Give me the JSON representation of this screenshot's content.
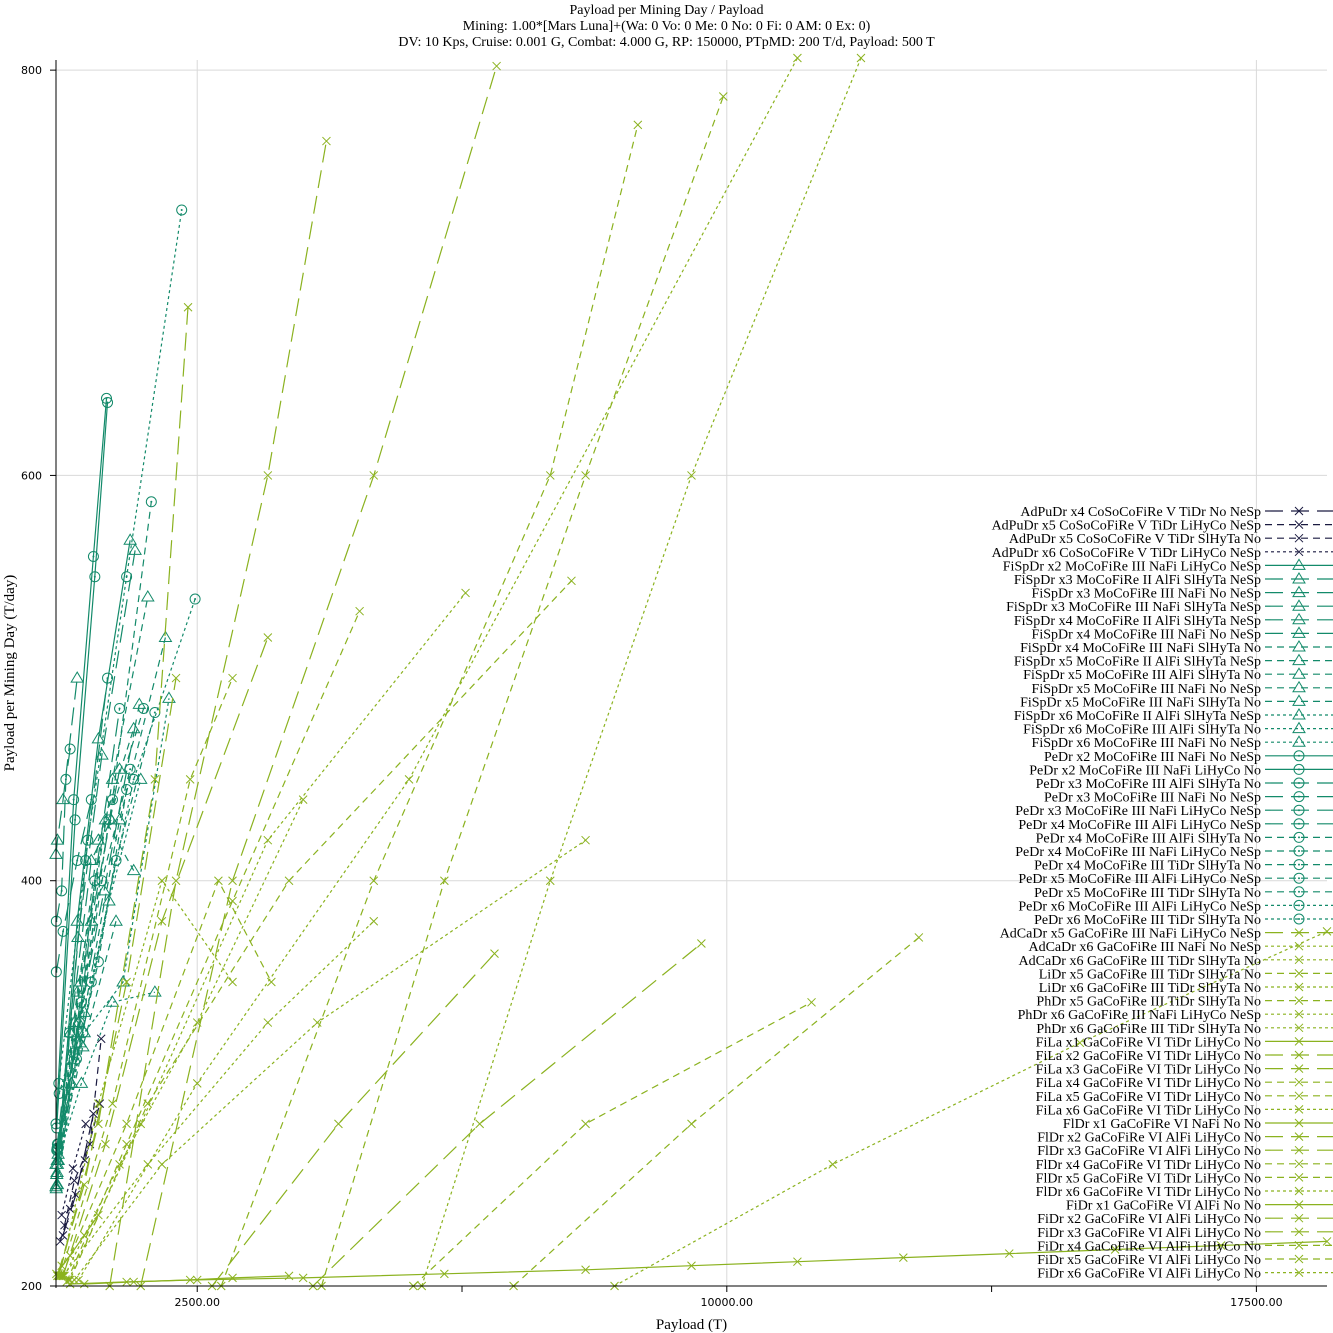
{
  "chart_data": {
    "type": "line",
    "title": "Payload per Mining Day / Payload",
    "subtitle_lines": [
      "Mining: 1.00*[Mars Luna]+(Wa: 0 Vo: 0 Me: 0 No: 0 Fi: 0 AM: 0 Ex: 0)",
      "DV: 10 Kps, Cruise: 0.001 G, Combat: 4.000 G, RP: 150000, PTpMD: 200 T/d, Payload: 500 T"
    ],
    "xlabel": "Payload (T)",
    "ylabel": "Payload per Mining Day (T/day)",
    "xlim": [
      500,
      18500
    ],
    "ylim": [
      200,
      805
    ],
    "x_ticks": [
      2500,
      10000,
      17500
    ],
    "x_tick_labels": [
      "2500.00",
      "10000.00",
      "17500.00"
    ],
    "x_minor_ticks": [
      6250,
      13750
    ],
    "y_ticks": [
      200,
      400,
      600,
      800
    ],
    "y_tick_labels": [
      "200",
      "400",
      "600",
      "800"
    ],
    "grid": true,
    "legend_position": "right",
    "colors": {
      "dark": "#1a1a40",
      "teal": "#138a6a",
      "green": "#3a9a3a",
      "lime": "#8bb21f"
    },
    "series": [
      {
        "name": "AdPuDr x4 CoSoCoFiRe V TiDr No NeSp",
        "marker": "x",
        "color": "#1a1a40",
        "dash": "long",
        "x": [
          598,
          780,
          1030
        ],
        "y": [
          225,
          245,
          285
        ]
      },
      {
        "name": "AdPuDr x5 CoSoCoFiRe V TiDr LiHyCo NeSp",
        "marker": "x",
        "color": "#1a1a40",
        "dash": "med",
        "x": [
          560,
          700,
          910,
          1120
        ],
        "y": [
          222,
          238,
          262,
          290
        ]
      },
      {
        "name": "AdPuDr x5 CoSoCoFiRe V TiDr SlHyTa No",
        "marker": "x",
        "color": "#1a1a40",
        "dash": "med",
        "x": [
          620,
          760,
          980,
          1140
        ],
        "y": [
          230,
          252,
          270,
          322
        ]
      },
      {
        "name": "AdPuDr x6 CoSoCoFiRe V TiDr LiHyCo NeSp",
        "marker": "x",
        "color": "#1a1a40",
        "dash": "dot",
        "x": [
          580,
          740,
          920
        ],
        "y": [
          235,
          258,
          280
        ]
      },
      {
        "name": "FiSpDr x2 MoCoFiRe III NaFi LiHyCo NeSp",
        "marker": "tri",
        "color": "#138a6a",
        "dash": "solid",
        "x": [
          500,
          800,
          1100,
          1550
        ],
        "y": [
          249,
          380,
          470,
          568
        ]
      },
      {
        "name": "FiSpDr x3 MoCoFiRe II AlFi SlHyTa NeSp",
        "marker": "tri",
        "color": "#138a6a",
        "dash": "long",
        "x": [
          510,
          810,
          1150,
          1620
        ],
        "y": [
          250,
          372,
          462,
          563
        ]
      },
      {
        "name": "FiSpDr x3 MoCoFiRe III NaFi No NeSp",
        "marker": "tri",
        "color": "#138a6a",
        "dash": "long",
        "x": [
          500,
          520,
          600,
          800
        ],
        "y": [
          413,
          420,
          440,
          500
        ]
      },
      {
        "name": "FiSpDr x3 MoCoFiRe III NaFi SlHyTa NeSp",
        "marker": "tri",
        "color": "#138a6a",
        "dash": "long",
        "x": [
          500,
          700,
          1000,
          1280
        ],
        "y": [
          260,
          325,
          410,
          430
        ]
      },
      {
        "name": "FiSpDr x4 MoCoFiRe II AlFi SlHyTa NeSp",
        "marker": "tri",
        "color": "#138a6a",
        "dash": "long",
        "x": [
          515,
          820,
          1180,
          1680
        ],
        "y": [
          256,
          330,
          395,
          487
        ]
      },
      {
        "name": "FiSpDr x4 MoCoFiRe III NaFi No NeSp",
        "marker": "tri",
        "color": "#138a6a",
        "dash": "long",
        "x": [
          505,
          720,
          1000,
          1400
        ],
        "y": [
          248,
          300,
          380,
          455
        ]
      },
      {
        "name": "FiSpDr x4 MoCoFiRe III NaFi SlHyTa No",
        "marker": "tri",
        "color": "#138a6a",
        "dash": "med",
        "x": [
          520,
          850,
          1300,
          1800
        ],
        "y": [
          260,
          350,
          450,
          540
        ]
      },
      {
        "name": "FiSpDr x5 MoCoFiRe II AlFi SlHyTa NeSp",
        "marker": "tri",
        "color": "#138a6a",
        "dash": "med",
        "x": [
          520,
          800,
          1200,
          1600
        ],
        "y": [
          262,
          345,
          430,
          405
        ]
      },
      {
        "name": "FiSpDr x5 MoCoFiRe III AlFi SlHyTa No",
        "marker": "tri",
        "color": "#138a6a",
        "dash": "med",
        "x": [
          530,
          880,
          1350
        ],
        "y": [
          262,
          318,
          380
        ]
      },
      {
        "name": "FiSpDr x5 MoCoFiRe III NaFi No NeSp",
        "marker": "tri",
        "color": "#138a6a",
        "dash": "med",
        "x": [
          510,
          760,
          1100,
          1600
        ],
        "y": [
          255,
          330,
          420,
          475
        ]
      },
      {
        "name": "FiSpDr x5 MoCoFiRe III NaFi SlHyTa No",
        "marker": "tri",
        "color": "#138a6a",
        "dash": "med",
        "x": [
          530,
          900,
          1400,
          2050
        ],
        "y": [
          262,
          335,
          430,
          520
        ]
      },
      {
        "name": "FiSpDr x6 MoCoFiRe II AlFi SlHyTa NeSp",
        "marker": "tri",
        "color": "#138a6a",
        "dash": "dot",
        "x": [
          520,
          860,
          1300,
          1900
        ],
        "y": [
          262,
          300,
          340,
          345
        ]
      },
      {
        "name": "FiSpDr x6 MoCoFiRe III AlFi SlHyTa No",
        "marker": "tri",
        "color": "#138a6a",
        "dash": "dot",
        "x": [
          530,
          900,
          1450,
          2100
        ],
        "y": [
          265,
          325,
          350,
          490
        ]
      },
      {
        "name": "FiSpDr x6 MoCoFiRe III NaFi No NeSp",
        "marker": "tri",
        "color": "#138a6a",
        "dash": "dot",
        "x": [
          520,
          840,
          1250,
          1700
        ],
        "y": [
          250,
          320,
          390,
          450
        ]
      },
      {
        "name": "PeDr x2 MoCoFiRe III NaFi No NeSp",
        "marker": "circ",
        "color": "#138a6a",
        "dash": "solid",
        "x": [
          500,
          750,
          1030,
          1215
        ],
        "y": [
          280,
          440,
          560,
          638
        ]
      },
      {
        "name": "PeDr x2 MoCoFiRe III NaFi LiHyCo No",
        "marker": "circ",
        "color": "#138a6a",
        "dash": "solid",
        "x": [
          510,
          770,
          1050,
          1230
        ],
        "y": [
          278,
          430,
          550,
          636
        ]
      },
      {
        "name": "PeDr x3 MoCoFiRe III AlFi SlHyTa No",
        "marker": "circ",
        "color": "#138a6a",
        "dash": "long",
        "x": [
          505,
          600,
          800,
          1000
        ],
        "y": [
          355,
          375,
          410,
          440
        ]
      },
      {
        "name": "PeDr x3 MoCoFiRe III NaFi No NeSp",
        "marker": "circ",
        "color": "#138a6a",
        "dash": "long",
        "x": [
          505,
          580,
          640,
          700
        ],
        "y": [
          380,
          395,
          450,
          465
        ]
      },
      {
        "name": "PeDr x3 MoCoFiRe III NaFi LiHyCo NeSp",
        "marker": "circ",
        "color": "#138a6a",
        "dash": "long",
        "x": [
          510,
          690,
          920,
          1230
        ],
        "y": [
          267,
          325,
          410,
          500
        ]
      },
      {
        "name": "PeDr x4 MoCoFiRe III AlFi LiHyCo NeSp",
        "marker": "circ",
        "color": "#138a6a",
        "dash": "long",
        "x": [
          515,
          750,
          1050,
          1400
        ],
        "y": [
          268,
          315,
          400,
          485
        ]
      },
      {
        "name": "PeDr x4 MoCoFiRe III AlFi SlHyTa No",
        "marker": "circ",
        "color": "#138a6a",
        "dash": "med",
        "x": [
          520,
          790,
          1100,
          1500
        ],
        "y": [
          267,
          312,
          360,
          445
        ]
      },
      {
        "name": "PeDr x4 MoCoFiRe III NaFi LiHyCo NeSp",
        "marker": "circ",
        "color": "#138a6a",
        "dash": "med",
        "x": [
          520,
          800,
          1150,
          1550
        ],
        "y": [
          270,
          320,
          400,
          455
        ]
      },
      {
        "name": "PeDr x4 MoCoFiRe III TiDr SlHyTa No",
        "marker": "circ",
        "color": "#138a6a",
        "dash": "med",
        "x": [
          525,
          830,
          1250,
          1740
        ],
        "y": [
          268,
          330,
          430,
          485
        ]
      },
      {
        "name": "PeDr x5 MoCoFiRe III AlFi LiHyCo NeSp",
        "marker": "circ",
        "color": "#138a6a",
        "dash": "med",
        "x": [
          530,
          860,
          1300,
          1850
        ],
        "y": [
          268,
          340,
          440,
          587
        ]
      },
      {
        "name": "PeDr x5 MoCoFiRe III TiDr SlHyTa No",
        "marker": "circ",
        "color": "#138a6a",
        "dash": "med",
        "x": [
          530,
          880,
          1350,
          1900
        ],
        "y": [
          270,
          325,
          410,
          483
        ]
      },
      {
        "name": "PeDr x6 MoCoFiRe III AlFi LiHyCo NeSp",
        "marker": "circ",
        "color": "#138a6a",
        "dash": "dot",
        "x": [
          540,
          950,
          1500,
          2280
        ],
        "y": [
          300,
          420,
          550,
          731
        ]
      },
      {
        "name": "PeDr x6 MoCoFiRe III TiDr SlHyTa No",
        "marker": "circ",
        "color": "#138a6a",
        "dash": "dot",
        "x": [
          545,
          1000,
          1600,
          2470
        ],
        "y": [
          295,
          350,
          450,
          539
        ]
      },
      {
        "name": "AdCaDr x5 GaCoFiRe III NaFi LiHyCo NeSp",
        "marker": "x",
        "color": "#8bb21f",
        "dash": "long",
        "x": [
          600,
          1200,
          2000,
          3500
        ],
        "y": [
          205,
          270,
          380,
          520
        ]
      },
      {
        "name": "AdCaDr x6 GaCoFiRe III NaFi No NeSp",
        "marker": "x",
        "color": "#8bb21f",
        "dash": "dot",
        "x": [
          580,
          1100,
          2000,
          3000
        ],
        "y": [
          210,
          290,
          400,
          350
        ]
      },
      {
        "name": "AdCaDr x6 GaCoFiRe III TiDr SlHyTa No",
        "marker": "x",
        "color": "#8bb21f",
        "dash": "dot",
        "x": [
          620,
          1400,
          2500,
          4000
        ],
        "y": [
          205,
          260,
          330,
          440
        ]
      },
      {
        "name": "LiDr x5 GaCoFiRe III TiDr SlHyTa No",
        "marker": "x",
        "color": "#8bb21f",
        "dash": "med",
        "x": [
          650,
          1500,
          3000,
          4800
        ],
        "y": [
          202,
          270,
          390,
          533
        ]
      },
      {
        "name": "LiDr x6 GaCoFiRe III TiDr SlHyTa No",
        "marker": "x",
        "color": "#8bb21f",
        "dash": "dot",
        "x": [
          680,
          1700,
          3500,
          6300
        ],
        "y": [
          203,
          280,
          420,
          542
        ]
      },
      {
        "name": "PhDr x5 GaCoFiRe III TiDr SlHyTa No",
        "marker": "x",
        "color": "#8bb21f",
        "dash": "med",
        "x": [
          700,
          1800,
          3800,
          7800
        ],
        "y": [
          203,
          290,
          400,
          548
        ]
      },
      {
        "name": "PhDr x6 GaCoFiRe III NaFi LiHyCo NeSp",
        "marker": "x",
        "color": "#8bb21f",
        "dash": "dot",
        "x": [
          760,
          2000,
          4200,
          8000
        ],
        "y": [
          203,
          260,
          330,
          420
        ]
      },
      {
        "name": "PhDr x6 GaCoFiRe III TiDr SlHyTa No",
        "marker": "x",
        "color": "#8bb21f",
        "dash": "dot",
        "x": [
          820,
          2500,
          5500,
          11000
        ],
        "y": [
          203,
          300,
          450,
          806
        ]
      },
      {
        "name": "FiLa x1 GaCoFiRe VI TiDr LiHyCo No",
        "marker": "x",
        "color": "#8bb21f",
        "dash": "solid",
        "x": [
          505,
          700,
          900,
          1100
        ],
        "y": [
          206,
          215,
          225,
          235
        ]
      },
      {
        "name": "FiLa x2 GaCoFiRe VI TiDr LiHyCo No",
        "marker": "x",
        "color": "#8bb21f",
        "dash": "long",
        "x": [
          520,
          900,
          1500,
          2200
        ],
        "y": [
          205,
          250,
          350,
          500
        ]
      },
      {
        "name": "FiLa x3 GaCoFiRe VI TiDr LiHyCo No",
        "marker": "x",
        "color": "#8bb21f",
        "dash": "long",
        "x": [
          540,
          1100,
          1900,
          2370
        ],
        "y": [
          205,
          280,
          450,
          683
        ]
      },
      {
        "name": "FiLa x4 GaCoFiRe VI TiDr LiHyCo No",
        "marker": "x",
        "color": "#8bb21f",
        "dash": "med",
        "x": [
          560,
          1300,
          2400,
          3000
        ],
        "y": [
          205,
          290,
          450,
          500
        ]
      },
      {
        "name": "FiLa x5 GaCoFiRe VI TiDr LiHyCo No",
        "marker": "x",
        "color": "#8bb21f",
        "dash": "med",
        "x": [
          580,
          1500,
          2800,
          3550
        ],
        "y": [
          205,
          280,
          400,
          350
        ]
      },
      {
        "name": "FiLa x6 GaCoFiRe VI TiDr LiHyCo No",
        "marker": "x",
        "color": "#8bb21f",
        "dash": "dot",
        "x": [
          600,
          1800,
          3500,
          5000
        ],
        "y": [
          205,
          260,
          330,
          380
        ]
      },
      {
        "name": "FlDr x1 GaCoFiRe VI NaFi No No",
        "marker": "x",
        "color": "#8bb21f",
        "dash": "solid",
        "x": [
          700,
          1500,
          2500,
          4000,
          6000,
          8000,
          9500,
          11000,
          12500,
          14000,
          15500,
          17000,
          18500
        ],
        "y": [
          201,
          202,
          203,
          204,
          206,
          208,
          210,
          212,
          214,
          216,
          218,
          220,
          222
        ]
      },
      {
        "name": "FlDr x2 GaCoFiRe VI AlFi LiHyCo No",
        "marker": "x",
        "color": "#8bb21f",
        "dash": "long",
        "x": [
          1260,
          2200,
          3500,
          4330
        ],
        "y": [
          200,
          400,
          600,
          765
        ]
      },
      {
        "name": "FlDr x3 GaCoFiRe VI AlFi LiHyCo No",
        "marker": "x",
        "color": "#8bb21f",
        "dash": "long",
        "x": [
          1700,
          3000,
          5000,
          6740
        ],
        "y": [
          200,
          400,
          600,
          802
        ]
      },
      {
        "name": "FlDr x4 GaCoFiRe VI TiDr LiHyCo No",
        "marker": "x",
        "color": "#8bb21f",
        "dash": "med",
        "x": [
          2840,
          5000,
          7500,
          8740
        ],
        "y": [
          200,
          400,
          600,
          773
        ]
      },
      {
        "name": "FlDr x5 GaCoFiRe VI TiDr LiHyCo No",
        "marker": "x",
        "color": "#8bb21f",
        "dash": "med",
        "x": [
          4260,
          6000,
          8000,
          9950
        ],
        "y": [
          200,
          400,
          600,
          787
        ]
      },
      {
        "name": "FlDr x6 GaCoFiRe VI TiDr LiHyCo No",
        "marker": "x",
        "color": "#8bb21f",
        "dash": "dot",
        "x": [
          5680,
          7500,
          9500,
          11900
        ],
        "y": [
          200,
          400,
          600,
          806
        ]
      },
      {
        "name": "FiDr x1 GaCoFiRe VI AlFi No No",
        "marker": "x",
        "color": "#8bb21f",
        "dash": "solid",
        "x": [
          900,
          1600,
          2400,
          3000,
          3800
        ],
        "y": [
          201,
          202,
          203,
          204,
          205
        ]
      },
      {
        "name": "FiDr x2 GaCoFiRe VI AlFi LiHyCo No",
        "marker": "x",
        "color": "#8bb21f",
        "dash": "long",
        "x": [
          2710,
          4500,
          6710
        ],
        "y": [
          200,
          280,
          364
        ]
      },
      {
        "name": "FiDr x3 GaCoFiRe VI AlFi LiHyCo No",
        "marker": "x",
        "color": "#8bb21f",
        "dash": "long",
        "x": [
          4140,
          6500,
          9640
        ],
        "y": [
          200,
          280,
          369
        ]
      },
      {
        "name": "FiDr x4 GaCoFiRe VI AlFi LiHyCo No",
        "marker": "x",
        "color": "#8bb21f",
        "dash": "med",
        "x": [
          5560,
          8000,
          11200
        ],
        "y": [
          200,
          280,
          340
        ]
      },
      {
        "name": "FiDr x5 GaCoFiRe VI AlFi LiHyCo No",
        "marker": "x",
        "color": "#8bb21f",
        "dash": "med",
        "x": [
          6980,
          9500,
          12720
        ],
        "y": [
          200,
          280,
          372
        ]
      },
      {
        "name": "FiDr x6 GaCoFiRe VI AlFi LiHyCo No",
        "marker": "x",
        "color": "#8bb21f",
        "dash": "dot",
        "x": [
          8410,
          11500,
          15000,
          18500
        ],
        "y": [
          200,
          260,
          320,
          375
        ]
      }
    ]
  }
}
